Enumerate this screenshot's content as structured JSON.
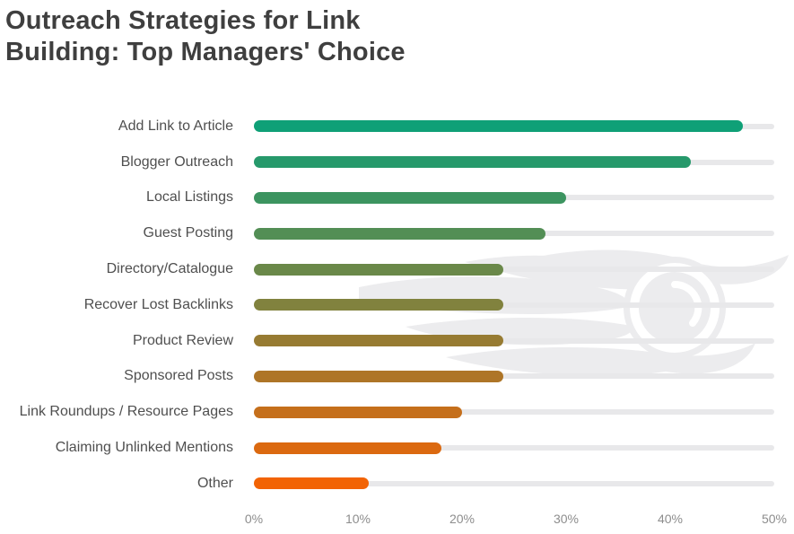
{
  "header": {
    "title_line1": "Outreach Strategies for Link",
    "title_line2": "Building: Top Managers' Choice"
  },
  "chart_data": {
    "type": "bar",
    "orientation": "horizontal",
    "title": "Outreach Strategies for Link Building: Top Managers' Choice",
    "categories": [
      "Add Link to Article",
      "Blogger Outreach",
      "Local Listings",
      "Guest Posting",
      "Directory/Catalogue",
      "Recover Lost Backlinks",
      "Product Review",
      "Sponsored Posts",
      "Link Roundups / Resource Pages",
      "Claiming Unlinked Mentions",
      "Other"
    ],
    "values": [
      47,
      42,
      30,
      28,
      24,
      24,
      24,
      24,
      20,
      18,
      11
    ],
    "unit": "%",
    "xlabel": "",
    "ylabel": "",
    "xlim": [
      0,
      50
    ],
    "x_ticks": [
      "0%",
      "10%",
      "20%",
      "30%",
      "40%",
      "50%"
    ],
    "grid": false,
    "legend": false,
    "bar_colors": [
      "#0fa077",
      "#26996b",
      "#3c9460",
      "#538e55",
      "#6a8849",
      "#81823e",
      "#977b32",
      "#ae7527",
      "#c56f1b",
      "#db6910",
      "#f26304"
    ],
    "track_color": "#e8e8ea",
    "watermark_icon": "semrush-fireball-logo"
  },
  "colors": {
    "background": "#ffffff",
    "title_text": "#3f3f3f",
    "label_text": "#4f4f4f",
    "tick_text": "#8d8d8d",
    "watermark": "#ececee"
  }
}
